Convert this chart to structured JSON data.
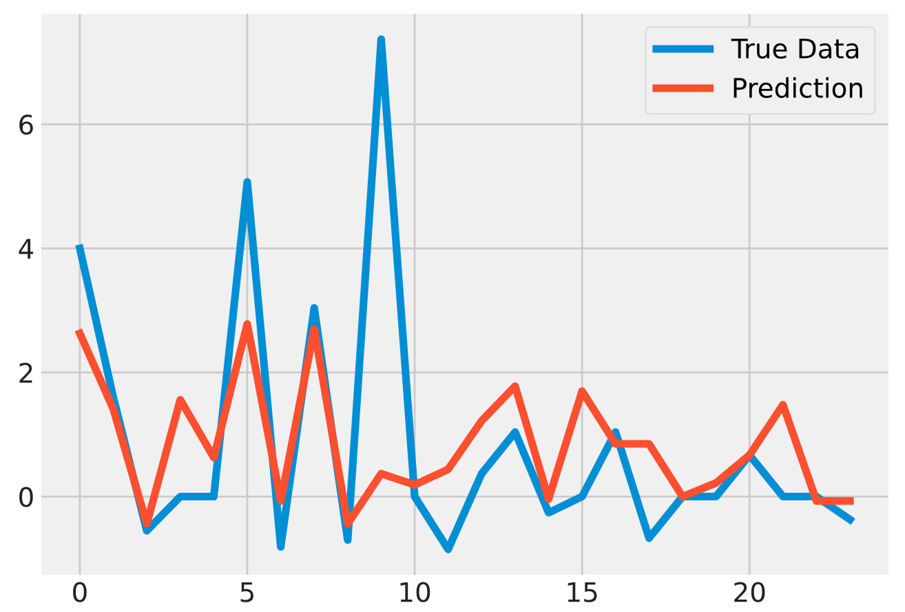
{
  "chart_data": {
    "type": "line",
    "x": [
      0,
      1,
      2,
      3,
      4,
      5,
      6,
      7,
      8,
      9,
      10,
      11,
      12,
      13,
      14,
      15,
      16,
      17,
      18,
      19,
      20,
      21,
      22,
      23
    ],
    "series": [
      {
        "name": "True Data",
        "color": "#008fd5",
        "values": [
          4.0,
          1.6,
          -0.55,
          0,
          0,
          5.07,
          -0.81,
          3.04,
          -0.7,
          7.37,
          0,
          -0.85,
          0.37,
          1.04,
          -0.26,
          0,
          1.04,
          -0.67,
          0,
          0,
          0.67,
          0,
          0,
          -0.37
        ]
      },
      {
        "name": "Prediction",
        "color": "#fc4f30",
        "values": [
          2.63,
          1.41,
          -0.44,
          1.56,
          0.63,
          2.78,
          -0.07,
          2.7,
          -0.44,
          0.37,
          0.19,
          0.44,
          1.22,
          1.78,
          -0.04,
          1.7,
          0.85,
          0.85,
          0,
          0.22,
          0.67,
          1.48,
          -0.07,
          -0.07
        ]
      }
    ],
    "xlim": [
      -1.15,
      24.15
    ],
    "ylim": [
      -1.26,
      7.78
    ],
    "xticks": [
      0,
      5,
      10,
      15,
      20
    ],
    "yticks": [
      0,
      2,
      4,
      6
    ],
    "grid": true,
    "legend": "top right",
    "line_style": "solid",
    "marker": "none"
  }
}
